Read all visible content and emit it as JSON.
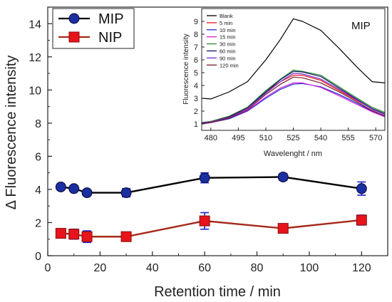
{
  "chart_data": [
    {
      "type": "line",
      "xlabel": "Retention time / min",
      "ylabel": "Δ Fluorescence intensity",
      "xlim": [
        0,
        130
      ],
      "ylim": [
        0,
        15
      ],
      "xticks": [
        "0",
        "20",
        "40",
        "60",
        "80",
        "100",
        "120"
      ],
      "yticks": [
        "0",
        "2",
        "4",
        "6",
        "8",
        "10",
        "12",
        "14"
      ],
      "grid": false,
      "legend_position": "top-left",
      "series": [
        {
          "name": "MIP",
          "color": "#000000",
          "marker": "ball",
          "marker_color": "#1a2fa0",
          "x": [
            5,
            10,
            15,
            30,
            60,
            90,
            120
          ],
          "y": [
            4.15,
            4.05,
            3.8,
            3.8,
            4.7,
            4.75,
            4.05
          ],
          "error": [
            0.12,
            0.12,
            0.15,
            0.25,
            0.3,
            0.2,
            0.4
          ]
        },
        {
          "name": "NIP",
          "color": "#a52a1a",
          "marker": "square",
          "marker_color": "#e8141b",
          "x": [
            5,
            10,
            15,
            30,
            60,
            90,
            120
          ],
          "y": [
            1.35,
            1.3,
            1.15,
            1.15,
            2.1,
            1.65,
            2.15
          ],
          "error": [
            0.25,
            0.3,
            0.35,
            0.2,
            0.5,
            0.2,
            0.3
          ]
        }
      ],
      "error_bar_color": "#1f1fd0"
    },
    {
      "type": "line",
      "title": "MIP",
      "xlabel": "Wavelenght / nm",
      "ylabel": "Fluorescence intensity",
      "xlim": [
        475,
        575
      ],
      "ylim": [
        0.5,
        10
      ],
      "xticks": [
        "480",
        "495",
        "510",
        "525",
        "540",
        "555",
        "570"
      ],
      "yticks": [
        "1",
        "2",
        "3",
        "4",
        "5",
        "6",
        "7",
        "8",
        "9"
      ],
      "legend_position": "top-left",
      "x": [
        475,
        480,
        490,
        500,
        510,
        518,
        525,
        530,
        540,
        550,
        560,
        568,
        575
      ],
      "series": [
        {
          "name": "Blank",
          "color": "#000000",
          "y": [
            3.0,
            2.95,
            3.5,
            4.3,
            6.0,
            7.6,
            9.2,
            9.0,
            8.3,
            6.9,
            5.4,
            4.3,
            4.2
          ]
        },
        {
          "name": "5 min",
          "color": "#e8141b",
          "y": [
            1.1,
            1.2,
            1.6,
            2.3,
            3.5,
            4.3,
            4.8,
            4.8,
            4.4,
            3.6,
            2.8,
            2.2,
            1.8
          ]
        },
        {
          "name": "10 min",
          "color": "#1f2fd8",
          "y": [
            1.0,
            1.1,
            1.4,
            2.0,
            3.0,
            3.7,
            4.1,
            4.15,
            3.9,
            3.3,
            2.6,
            2.0,
            1.6
          ]
        },
        {
          "name": "15 min",
          "color": "#d81bd8",
          "y": [
            1.05,
            1.1,
            1.45,
            2.05,
            3.1,
            3.8,
            4.2,
            4.2,
            3.85,
            3.2,
            2.5,
            1.95,
            1.55
          ]
        },
        {
          "name": "30 min",
          "color": "#2e8b2e",
          "y": [
            1.1,
            1.2,
            1.6,
            2.3,
            3.6,
            4.5,
            5.2,
            5.1,
            4.8,
            3.9,
            3.0,
            2.3,
            1.9
          ]
        },
        {
          "name": "60 min",
          "color": "#0a1a6a",
          "y": [
            1.1,
            1.15,
            1.55,
            2.25,
            3.5,
            4.45,
            5.1,
            5.05,
            4.7,
            3.8,
            2.9,
            2.2,
            1.8
          ]
        },
        {
          "name": "90 min",
          "color": "#7a28c8",
          "y": [
            1.05,
            1.15,
            1.5,
            2.2,
            3.4,
            4.3,
            4.95,
            4.9,
            4.5,
            3.7,
            2.85,
            2.15,
            1.75
          ]
        },
        {
          "name": "120 min",
          "color": "#7a1a2a",
          "y": [
            1.0,
            1.1,
            1.45,
            2.1,
            3.3,
            4.1,
            4.65,
            4.6,
            4.2,
            3.5,
            2.7,
            2.05,
            1.65
          ]
        }
      ]
    }
  ]
}
